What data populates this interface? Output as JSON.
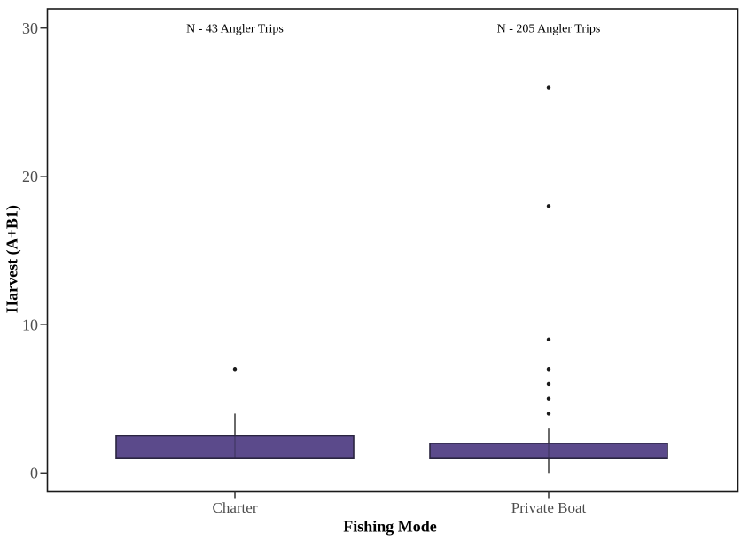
{
  "chart_data": {
    "type": "boxplot",
    "title": "",
    "xlabel": "Fishing Mode",
    "ylabel": "Harvest (A+B1)",
    "yticks": [
      0,
      10,
      20,
      30
    ],
    "ylim": [
      -1.3,
      31.3
    ],
    "grid": false,
    "legend": false,
    "categories": [
      "Charter",
      "Private Boat"
    ],
    "series": [
      {
        "category": "Charter",
        "whisker_low": 1,
        "q1": 1,
        "median": 1,
        "q3": 2.5,
        "whisker_high": 4,
        "outliers": [
          7
        ],
        "annotation": "N - 43 Angler Trips",
        "annotation_y": 30
      },
      {
        "category": "Private Boat",
        "whisker_low": 0,
        "q1": 1,
        "median": 1,
        "q3": 2,
        "whisker_high": 3,
        "outliers": [
          4,
          5,
          6,
          7,
          9,
          18,
          26
        ],
        "annotation": "N - 205 Angler Trips",
        "annotation_y": 30
      }
    ],
    "colors": {
      "box_fill": "#5B4A8B",
      "box_border": "#2A2540",
      "axis": "#1A1A1A",
      "tick_mark": "#333333",
      "tick_text": "#4D4D4D",
      "annotation_text": "#000000",
      "outlier": "#1B1B1B",
      "background": "#FFFFFF"
    }
  }
}
